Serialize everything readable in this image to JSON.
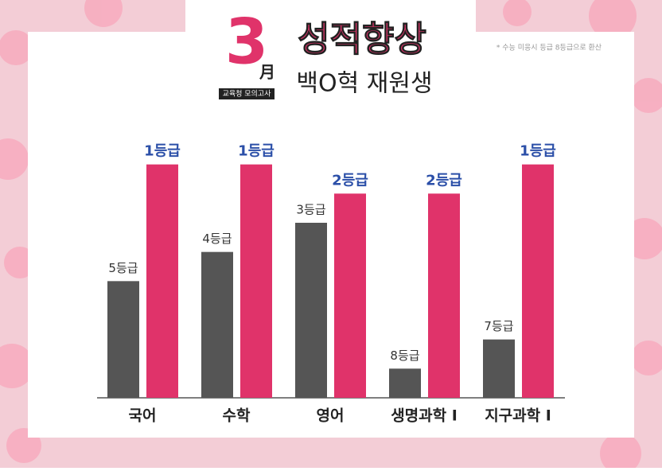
{
  "chart_data": {
    "type": "bar",
    "title": "성적향상",
    "subtitle": "백O혁 재원생",
    "annotations": [
      "3",
      "月",
      "교육청 모의고사",
      "* 수능 미응시 등급 8등급으로 환산"
    ],
    "categories": [
      "국어",
      "수학",
      "영어",
      "생명과학 I",
      "지구과학 I"
    ],
    "series": [
      {
        "color": "#555555",
        "values": [
          5,
          4,
          3,
          8,
          7
        ],
        "value_labels": [
          "5등급",
          "4등급",
          "3등급",
          "8등급",
          "7등급"
        ]
      },
      {
        "color": "#e0336a",
        "values": [
          1,
          1,
          2,
          2,
          1
        ],
        "value_labels": [
          "1등급",
          "1등급",
          "2등급",
          "2등급",
          "1등급"
        ]
      }
    ],
    "ylim": [
      9,
      0
    ]
  }
}
